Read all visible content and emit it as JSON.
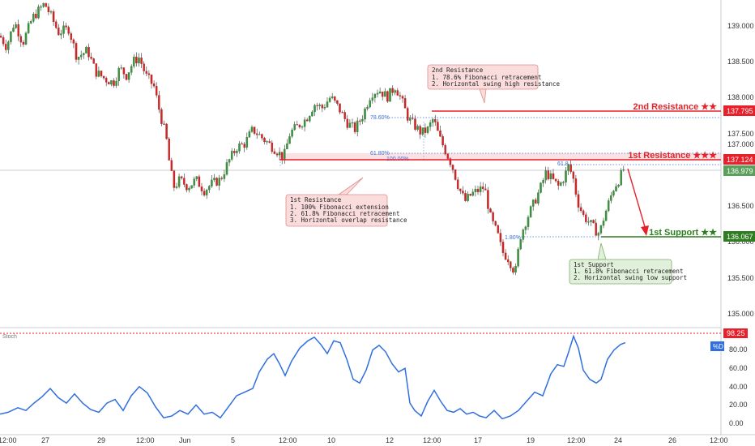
{
  "chart_data": [
    {
      "type": "candlestick",
      "y_ticks": [
        "139.000",
        "138.500",
        "138.000",
        "137.500",
        "137.000",
        "136.500",
        "136.000",
        "135.500",
        "135.000"
      ],
      "x_ticks": [
        "12:00",
        "27",
        "29",
        "12:00",
        "Jun",
        "5",
        "12:00",
        "10",
        "12",
        "12:00",
        "17",
        "19",
        "12:00",
        "24",
        "26",
        "12:00"
      ],
      "ylim": [
        134.8,
        139.35
      ],
      "last_price": "136.979",
      "levels": [
        {
          "label": "2nd Resistance ★★",
          "value": 137.795,
          "tag": "137.795",
          "color": "#e8202a"
        },
        {
          "label": "1st Resistance ★★★",
          "value": 137.124,
          "tag": "137.124",
          "color": "#e8202a"
        },
        {
          "label": "1st Support ★★",
          "value": 136.067,
          "tag": "136.067",
          "color": "#2e7d20"
        }
      ],
      "fib_labels": [
        "78.60%",
        "61.80%",
        "100.00%",
        "1.80%",
        "61.8"
      ],
      "annotations": [
        {
          "id": "second-resistance-note",
          "title": "2nd Resistance",
          "lines": [
            "1. 78.6% Fibonacci retracement",
            "2. Horizontal swing high resistance"
          ]
        },
        {
          "id": "first-resistance-note",
          "title": "1st Resistance",
          "lines": [
            "1. 100% Fibonacci extension",
            "2. 61.8% Fibonacci retracement",
            "3. Horizontal overlap resistance"
          ]
        },
        {
          "id": "first-support-note",
          "title": "1st Support",
          "lines": [
            "1. 61.8% Fibonacci retracement",
            "2. Horizontal swing low support"
          ]
        }
      ],
      "path_anchors": [
        [
          0,
          138.85
        ],
        [
          8,
          138.7
        ],
        [
          18,
          139.05
        ],
        [
          28,
          138.75
        ],
        [
          40,
          139.1
        ],
        [
          55,
          139.3
        ],
        [
          62,
          139.15
        ],
        [
          72,
          138.9
        ],
        [
          85,
          138.95
        ],
        [
          95,
          138.55
        ],
        [
          108,
          138.65
        ],
        [
          118,
          138.35
        ],
        [
          130,
          138.25
        ],
        [
          140,
          138.2
        ],
        [
          148,
          138.4
        ],
        [
          156,
          138.3
        ],
        [
          165,
          138.5
        ],
        [
          172,
          138.55
        ],
        [
          180,
          138.3
        ],
        [
          190,
          138.15
        ],
        [
          198,
          137.75
        ],
        [
          205,
          137.45
        ],
        [
          210,
          137.0
        ],
        [
          215,
          136.75
        ],
        [
          222,
          136.85
        ],
        [
          232,
          136.75
        ],
        [
          242,
          136.85
        ],
        [
          252,
          136.7
        ],
        [
          262,
          136.8
        ],
        [
          272,
          136.85
        ],
        [
          282,
          137.1
        ],
        [
          292,
          137.3
        ],
        [
          302,
          137.35
        ],
        [
          312,
          137.55
        ],
        [
          322,
          137.45
        ],
        [
          332,
          137.35
        ],
        [
          342,
          137.25
        ],
        [
          350,
          137.15
        ],
        [
          358,
          137.5
        ],
        [
          368,
          137.6
        ],
        [
          378,
          137.7
        ],
        [
          388,
          137.9
        ],
        [
          398,
          137.85
        ],
        [
          408,
          138.0
        ],
        [
          418,
          137.85
        ],
        [
          428,
          137.65
        ],
        [
          438,
          137.55
        ],
        [
          448,
          137.75
        ],
        [
          458,
          138.05
        ],
        [
          468,
          138.1
        ],
        [
          478,
          138.0
        ],
        [
          488,
          138.15
        ],
        [
          496,
          137.95
        ],
        [
          504,
          137.7
        ],
        [
          512,
          137.6
        ],
        [
          520,
          137.5
        ],
        [
          528,
          137.55
        ],
        [
          535,
          137.7
        ],
        [
          542,
          137.45
        ],
        [
          550,
          137.25
        ],
        [
          558,
          137.05
        ],
        [
          566,
          136.75
        ],
        [
          574,
          136.55
        ],
        [
          582,
          136.65
        ],
        [
          590,
          136.7
        ],
        [
          598,
          136.75
        ],
        [
          606,
          136.3
        ],
        [
          614,
          136.1
        ],
        [
          620,
          135.85
        ],
        [
          628,
          135.75
        ],
        [
          636,
          135.55
        ],
        [
          642,
          136.05
        ],
        [
          650,
          136.3
        ],
        [
          658,
          136.5
        ],
        [
          666,
          136.7
        ],
        [
          674,
          136.95
        ],
        [
          682,
          136.85
        ],
        [
          690,
          136.75
        ],
        [
          697,
          136.9
        ],
        [
          702,
          137.05
        ],
        [
          708,
          136.85
        ],
        [
          713,
          136.55
        ],
        [
          720,
          136.35
        ],
        [
          728,
          136.25
        ],
        [
          735,
          136.15
        ],
        [
          740,
          136.1
        ],
        [
          746,
          136.35
        ],
        [
          752,
          136.55
        ],
        [
          758,
          136.75
        ],
        [
          764,
          136.85
        ],
        [
          770,
          137.0
        ]
      ],
      "stoch_ticks": [
        "80.00",
        "60.00",
        "40.00",
        "20.00",
        "0.00"
      ],
      "stoch_label": "Stoch",
      "stoch_tag": "98.25",
      "stoch_d_tag": "%D",
      "stoch_anchors": [
        [
          0,
          10
        ],
        [
          10,
          12
        ],
        [
          22,
          17
        ],
        [
          32,
          14
        ],
        [
          42,
          22
        ],
        [
          52,
          29
        ],
        [
          62,
          38
        ],
        [
          72,
          28
        ],
        [
          82,
          22
        ],
        [
          92,
          32
        ],
        [
          102,
          22
        ],
        [
          112,
          15
        ],
        [
          122,
          12
        ],
        [
          132,
          22
        ],
        [
          142,
          26
        ],
        [
          152,
          14
        ],
        [
          162,
          30
        ],
        [
          172,
          40
        ],
        [
          182,
          33
        ],
        [
          192,
          18
        ],
        [
          202,
          6
        ],
        [
          212,
          8
        ],
        [
          222,
          14
        ],
        [
          232,
          10
        ],
        [
          242,
          20
        ],
        [
          252,
          10
        ],
        [
          262,
          12
        ],
        [
          272,
          6
        ],
        [
          282,
          18
        ],
        [
          292,
          30
        ],
        [
          302,
          34
        ],
        [
          312,
          38
        ],
        [
          320,
          56
        ],
        [
          330,
          70
        ],
        [
          338,
          76
        ],
        [
          345,
          65
        ],
        [
          352,
          52
        ],
        [
          360,
          68
        ],
        [
          370,
          82
        ],
        [
          380,
          90
        ],
        [
          388,
          94
        ],
        [
          396,
          86
        ],
        [
          404,
          76
        ],
        [
          412,
          90
        ],
        [
          420,
          88
        ],
        [
          428,
          70
        ],
        [
          436,
          48
        ],
        [
          444,
          44
        ],
        [
          452,
          58
        ],
        [
          460,
          80
        ],
        [
          468,
          85
        ],
        [
          476,
          78
        ],
        [
          484,
          65
        ],
        [
          492,
          56
        ],
        [
          500,
          60
        ],
        [
          506,
          22
        ],
        [
          512,
          14
        ],
        [
          520,
          8
        ],
        [
          528,
          24
        ],
        [
          536,
          36
        ],
        [
          544,
          24
        ],
        [
          552,
          14
        ],
        [
          560,
          12
        ],
        [
          568,
          16
        ],
        [
          576,
          10
        ],
        [
          584,
          12
        ],
        [
          592,
          8
        ],
        [
          600,
          6
        ],
        [
          610,
          14
        ],
        [
          620,
          5
        ],
        [
          630,
          8
        ],
        [
          640,
          14
        ],
        [
          650,
          24
        ],
        [
          660,
          34
        ],
        [
          670,
          30
        ],
        [
          680,
          54
        ],
        [
          688,
          64
        ],
        [
          696,
          62
        ],
        [
          702,
          78
        ],
        [
          708,
          95
        ],
        [
          714,
          82
        ],
        [
          720,
          58
        ],
        [
          728,
          48
        ],
        [
          736,
          44
        ],
        [
          742,
          48
        ],
        [
          750,
          70
        ],
        [
          758,
          80
        ],
        [
          766,
          86
        ],
        [
          772,
          88
        ]
      ]
    }
  ]
}
